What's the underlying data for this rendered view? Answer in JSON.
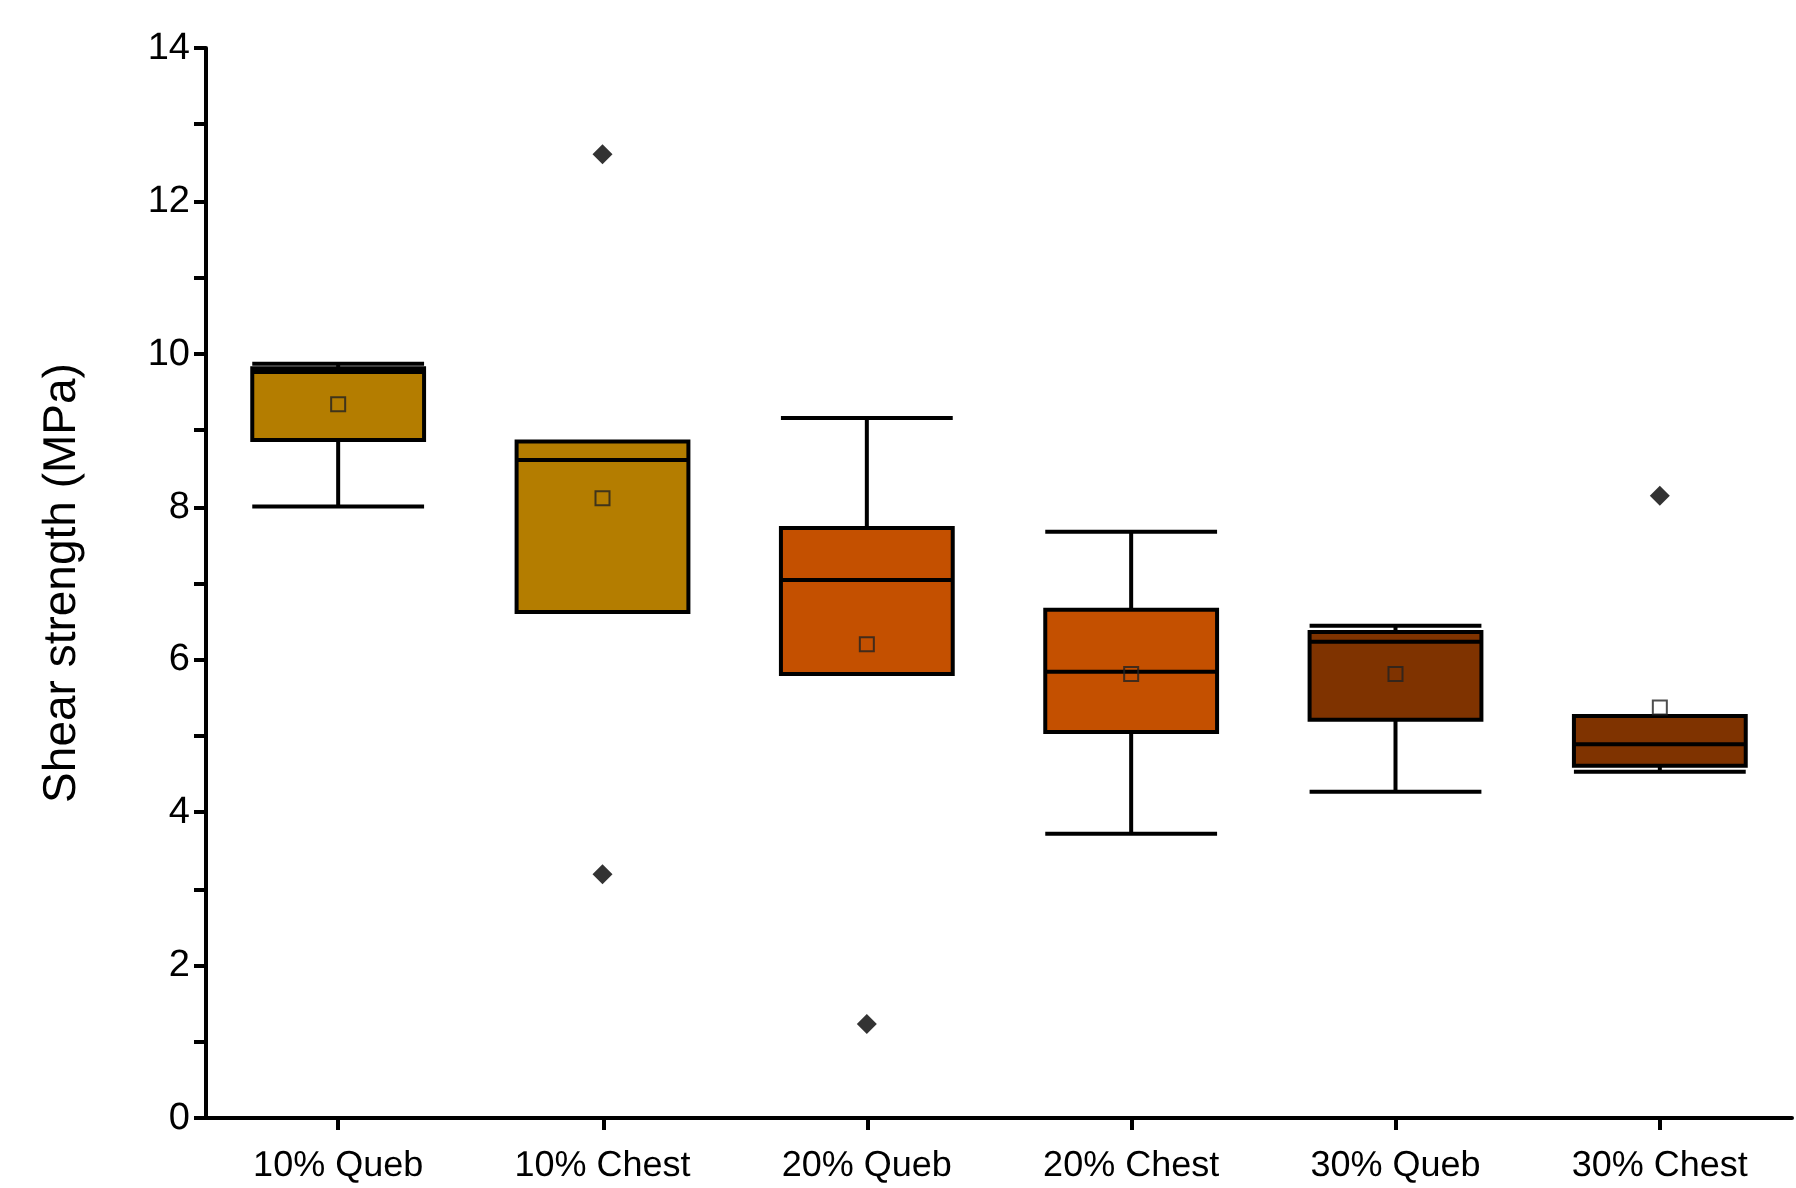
{
  "chart_data": {
    "type": "box",
    "ylabel": "Shear strength (MPa)",
    "categories": [
      "10% Queb",
      "10% Chest",
      "20% Queb",
      "20% Chest",
      "30% Queb",
      "30% Chest"
    ],
    "colors": [
      "#b47d00",
      "#b47d00",
      "#c45000",
      "#c45000",
      "#7f3300",
      "#7f3300"
    ],
    "boxes": [
      {
        "low": 8.0,
        "q1": 8.87,
        "median": 9.76,
        "q3": 9.81,
        "high": 9.87,
        "mean": 9.34
      },
      {
        "low": 6.62,
        "q1": 6.62,
        "median": 8.61,
        "q3": 8.85,
        "high": 8.85,
        "mean": 8.11,
        "outliers": [
          12.61,
          3.19
        ]
      },
      {
        "low": 5.81,
        "q1": 5.81,
        "median": 7.04,
        "q3": 7.72,
        "high": 9.16,
        "mean": 6.2,
        "outliers": [
          1.23
        ]
      },
      {
        "low": 3.72,
        "q1": 5.05,
        "median": 5.84,
        "q3": 6.65,
        "high": 7.67,
        "mean": 5.81
      },
      {
        "low": 4.27,
        "q1": 5.21,
        "median": 6.23,
        "q3": 6.36,
        "high": 6.44,
        "mean": 5.81
      },
      {
        "low": 4.53,
        "q1": 4.61,
        "median": 4.89,
        "q3": 5.26,
        "high": 5.26,
        "mean": 5.37,
        "outliers": [
          8.14
        ]
      }
    ],
    "ylim": [
      0,
      14
    ],
    "yticks": [
      0,
      {
        "value": 1,
        "label": null
      },
      2,
      {
        "value": 3,
        "label": null
      },
      4,
      {
        "value": 5,
        "label": null
      },
      6,
      {
        "value": 7,
        "label": null
      },
      8,
      {
        "value": 9,
        "label": null
      },
      10,
      {
        "value": 11,
        "label": null
      },
      12,
      {
        "value": 13,
        "label": null
      },
      14
    ],
    "grid": false
  }
}
